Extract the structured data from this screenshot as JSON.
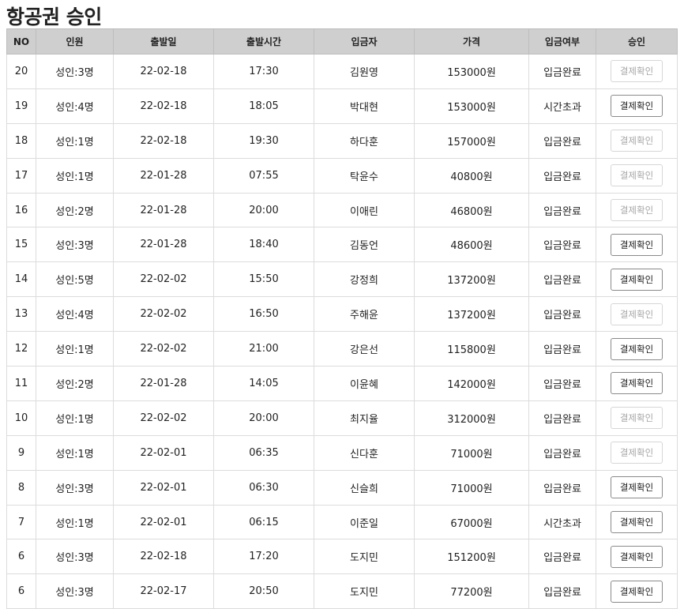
{
  "page": {
    "title": "항공권 승인"
  },
  "table": {
    "headers": [
      "NO",
      "인원",
      "출발일",
      "출발시간",
      "입금자",
      "가격",
      "입금여부",
      "승인"
    ],
    "rows": [
      {
        "no": "20",
        "people": "성인:3명",
        "date": "22-02-18",
        "time": "17:30",
        "payer": "김원영",
        "price": "153000원",
        "status": "입금완료",
        "action": "결제확인",
        "enabled": false
      },
      {
        "no": "19",
        "people": "성인:4명",
        "date": "22-02-18",
        "time": "18:05",
        "payer": "박대현",
        "price": "153000원",
        "status": "시간초과",
        "action": "결제확인",
        "enabled": true
      },
      {
        "no": "18",
        "people": "성인:1명",
        "date": "22-02-18",
        "time": "19:30",
        "payer": "하다훈",
        "price": "157000원",
        "status": "입금완료",
        "action": "결제확인",
        "enabled": false
      },
      {
        "no": "17",
        "people": "성인:1명",
        "date": "22-01-28",
        "time": "07:55",
        "payer": "탁윤수",
        "price": "40800원",
        "status": "입금완료",
        "action": "결제확인",
        "enabled": false
      },
      {
        "no": "16",
        "people": "성인:2명",
        "date": "22-01-28",
        "time": "20:00",
        "payer": "이애린",
        "price": "46800원",
        "status": "입금완료",
        "action": "결제확인",
        "enabled": false
      },
      {
        "no": "15",
        "people": "성인:3명",
        "date": "22-01-28",
        "time": "18:40",
        "payer": "김동언",
        "price": "48600원",
        "status": "입금완료",
        "action": "결제확인",
        "enabled": true
      },
      {
        "no": "14",
        "people": "성인:5명",
        "date": "22-02-02",
        "time": "15:50",
        "payer": "강정희",
        "price": "137200원",
        "status": "입금완료",
        "action": "결제확인",
        "enabled": true
      },
      {
        "no": "13",
        "people": "성인:4명",
        "date": "22-02-02",
        "time": "16:50",
        "payer": "주해윤",
        "price": "137200원",
        "status": "입금완료",
        "action": "결제확인",
        "enabled": false
      },
      {
        "no": "12",
        "people": "성인:1명",
        "date": "22-02-02",
        "time": "21:00",
        "payer": "강은선",
        "price": "115800원",
        "status": "입금완료",
        "action": "결제확인",
        "enabled": true
      },
      {
        "no": "11",
        "people": "성인:2명",
        "date": "22-01-28",
        "time": "14:05",
        "payer": "이윤혜",
        "price": "142000원",
        "status": "입금완료",
        "action": "결제확인",
        "enabled": true
      },
      {
        "no": "10",
        "people": "성인:1명",
        "date": "22-02-02",
        "time": "20:00",
        "payer": "최지율",
        "price": "312000원",
        "status": "입금완료",
        "action": "결제확인",
        "enabled": false
      },
      {
        "no": "9",
        "people": "성인:1명",
        "date": "22-02-01",
        "time": "06:35",
        "payer": "신다훈",
        "price": "71000원",
        "status": "입금완료",
        "action": "결제확인",
        "enabled": false
      },
      {
        "no": "8",
        "people": "성인:3명",
        "date": "22-02-01",
        "time": "06:30",
        "payer": "신슬희",
        "price": "71000원",
        "status": "입금완료",
        "action": "결제확인",
        "enabled": true
      },
      {
        "no": "7",
        "people": "성인:1명",
        "date": "22-02-01",
        "time": "06:15",
        "payer": "이준일",
        "price": "67000원",
        "status": "시간초과",
        "action": "결제확인",
        "enabled": true
      },
      {
        "no": "6",
        "people": "성인:3명",
        "date": "22-02-18",
        "time": "17:20",
        "payer": "도지민",
        "price": "151200원",
        "status": "입금완료",
        "action": "결제확인",
        "enabled": true
      },
      {
        "no": "6",
        "people": "성인:3명",
        "date": "22-02-17",
        "time": "20:50",
        "payer": "도지민",
        "price": "77200원",
        "status": "입금완료",
        "action": "결제확인",
        "enabled": true
      }
    ]
  },
  "colors": {
    "header_bg": "#cfcfcf",
    "button_disabled_text": "#a8a8a8"
  }
}
